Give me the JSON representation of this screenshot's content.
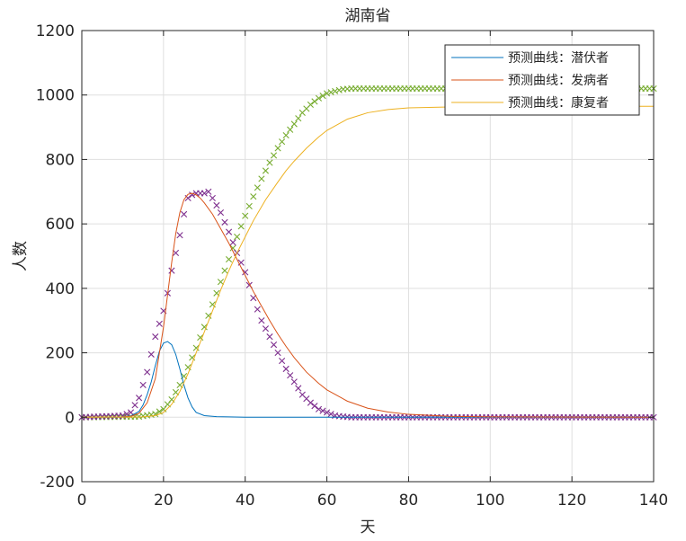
{
  "chart_data": {
    "type": "line",
    "title": "湖南省",
    "xlabel": "天",
    "ylabel": "人数",
    "xlim": [
      0,
      140
    ],
    "ylim": [
      -200,
      1200
    ],
    "xticks": [
      0,
      20,
      40,
      60,
      80,
      100,
      120,
      140
    ],
    "yticks": [
      -200,
      0,
      200,
      400,
      600,
      800,
      1000,
      1200
    ],
    "grid": true,
    "legend_position": "top-right",
    "series": [
      {
        "name": "预测曲线：潜伏者",
        "color": "#0072bd",
        "x": [
          0,
          8,
          10,
          12,
          14,
          15,
          16,
          17,
          18,
          19,
          20,
          21,
          22,
          23,
          24,
          25,
          26,
          27,
          28,
          30,
          33,
          36,
          40,
          50,
          60,
          140
        ],
        "y": [
          0,
          0,
          1,
          4,
          18,
          38,
          70,
          110,
          160,
          205,
          230,
          235,
          225,
          195,
          150,
          100,
          60,
          32,
          15,
          5,
          2,
          1,
          0,
          0,
          0,
          0
        ]
      },
      {
        "name": "预测曲线：发病者",
        "color": "#d95319",
        "x": [
          0,
          10,
          12,
          14,
          16,
          18,
          20,
          21,
          22,
          23,
          24,
          25,
          26,
          27,
          28,
          29,
          30,
          32,
          34,
          36,
          38,
          40,
          42,
          44,
          46,
          48,
          50,
          52,
          55,
          58,
          60,
          65,
          70,
          75,
          80,
          90,
          100,
          140
        ],
        "y": [
          0,
          1,
          3,
          12,
          45,
          120,
          280,
          380,
          480,
          570,
          635,
          675,
          692,
          695,
          690,
          680,
          665,
          630,
          585,
          540,
          490,
          440,
          390,
          345,
          300,
          258,
          220,
          185,
          140,
          105,
          85,
          50,
          28,
          16,
          9,
          3,
          1,
          0
        ]
      },
      {
        "name": "预测曲线：康复者",
        "color": "#edb120",
        "x": [
          0,
          15,
          18,
          20,
          22,
          24,
          26,
          28,
          30,
          32,
          34,
          36,
          38,
          40,
          42,
          45,
          48,
          50,
          52,
          55,
          58,
          60,
          65,
          70,
          75,
          80,
          90,
          100,
          140
        ],
        "y": [
          0,
          1,
          5,
          15,
          40,
          80,
          135,
          200,
          265,
          330,
          395,
          455,
          510,
          560,
          610,
          675,
          730,
          765,
          795,
          835,
          870,
          890,
          925,
          945,
          955,
          960,
          963,
          965,
          965
        ]
      }
    ]
  }
}
